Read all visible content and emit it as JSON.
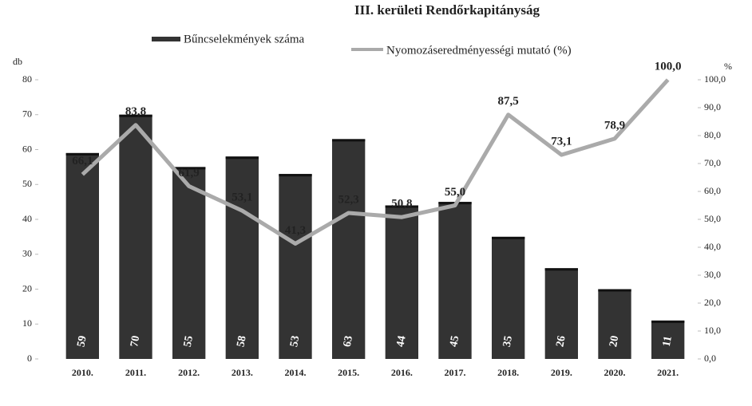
{
  "chart_data": {
    "type": "bar_line",
    "title": "III. kerületi Rendőrkapitányság",
    "y_label": "db",
    "y2_label": "%",
    "categories": [
      "2010.",
      "2011.",
      "2012.",
      "2013.",
      "2014.",
      "2015.",
      "2016.",
      "2017.",
      "2018.",
      "2019.",
      "2020.",
      "2021."
    ],
    "series": [
      {
        "name": "Bűncselekmények száma",
        "color": "#333333",
        "values": [
          59,
          70,
          55,
          58,
          53,
          63,
          44,
          45,
          35,
          26,
          20,
          11
        ]
      },
      {
        "name": "Nyomozáseredményességi mutató (%)",
        "color": "#aaaaaa",
        "axis": "y2",
        "values": [
          66.1,
          83.8,
          61.9,
          53.1,
          41.3,
          52.3,
          50.8,
          55.0,
          87.5,
          73.1,
          78.9,
          100.0
        ],
        "value_labels": [
          "66,1",
          "83,8",
          "61,9",
          "53,1",
          "41,3",
          "52,3",
          "50,8",
          "55,0",
          "87,5",
          "73,1",
          "78,9",
          "100,0"
        ]
      }
    ],
    "ylim": [
      0,
      80
    ],
    "yticks": [
      0,
      10,
      20,
      30,
      40,
      50,
      60,
      70,
      80
    ],
    "y2lim": [
      0,
      100
    ],
    "y2ticks": [
      {
        "value": 0,
        "label": "0,0"
      },
      {
        "value": 10,
        "label": "10,0"
      },
      {
        "value": 20,
        "label": "20,0"
      },
      {
        "value": 30,
        "label": "30,0"
      },
      {
        "value": 40,
        "label": "40,0"
      },
      {
        "value": 50,
        "label": "50,0"
      },
      {
        "value": 60,
        "label": "60,0"
      },
      {
        "value": 70,
        "label": "70,0"
      },
      {
        "value": 80,
        "label": "80,0"
      },
      {
        "value": 90,
        "label": "90,0"
      },
      {
        "value": 100,
        "label": "100,0"
      }
    ],
    "legend": "top"
  }
}
